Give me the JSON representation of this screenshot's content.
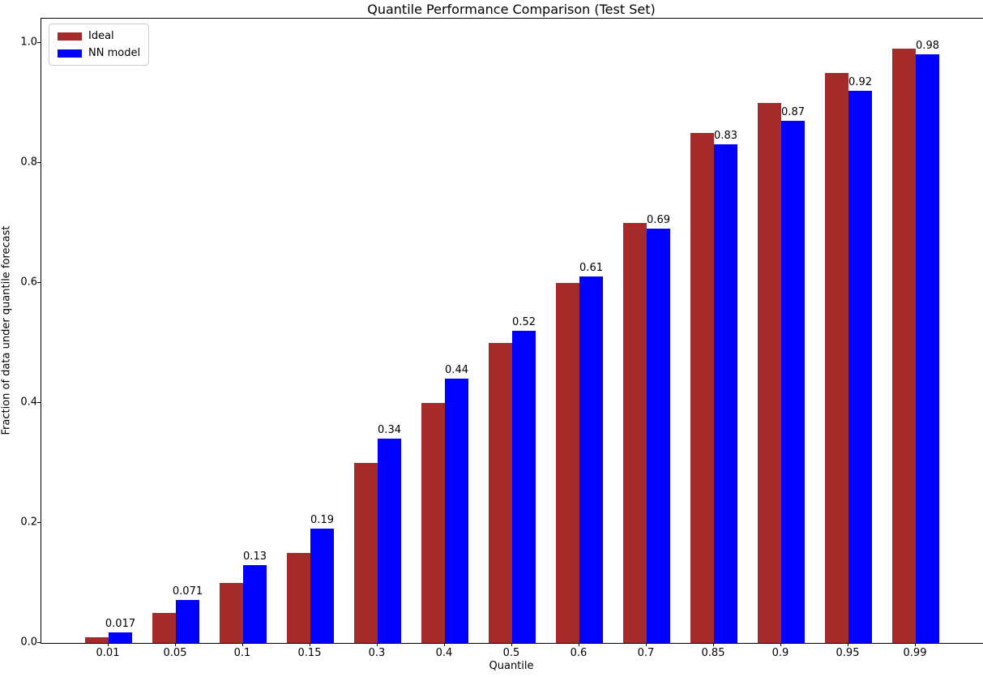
{
  "chart_data": {
    "type": "bar",
    "title": "Quantile Performance Comparison (Test Set)",
    "xlabel": "Quantile",
    "ylabel": "Fraction of data under quantile forecast",
    "categories": [
      "0.01",
      "0.05",
      "0.1",
      "0.15",
      "0.3",
      "0.4",
      "0.5",
      "0.6",
      "0.7",
      "0.85",
      "0.9",
      "0.95",
      "0.99"
    ],
    "series": [
      {
        "name": "Ideal",
        "color": "#A52A2A",
        "values": [
          0.01,
          0.05,
          0.1,
          0.15,
          0.3,
          0.4,
          0.5,
          0.6,
          0.7,
          0.85,
          0.9,
          0.95,
          0.99
        ]
      },
      {
        "name": "NN model",
        "color": "#0000FF",
        "values": [
          0.017,
          0.071,
          0.13,
          0.19,
          0.34,
          0.44,
          0.52,
          0.61,
          0.69,
          0.83,
          0.87,
          0.92,
          0.98
        ]
      }
    ],
    "bar_value_labels": {
      "labeled_series": "NN model",
      "labels": [
        "0.017",
        "0.071",
        "0.13",
        "0.19",
        "0.34",
        "0.44",
        "0.52",
        "0.61",
        "0.69",
        "0.83",
        "0.87",
        "0.92",
        "0.98"
      ]
    },
    "yticks": [
      "0.0",
      "0.2",
      "0.4",
      "0.6",
      "0.8",
      "1.0"
    ],
    "ytick_values": [
      0.0,
      0.2,
      0.4,
      0.6,
      0.8,
      1.0
    ],
    "ylim": [
      0,
      1.04
    ],
    "xlim": [
      -1,
      13
    ],
    "bar_width": 0.35,
    "grid": false,
    "legend": {
      "position": "upper-left",
      "entries": [
        "Ideal",
        "NN model"
      ]
    }
  }
}
